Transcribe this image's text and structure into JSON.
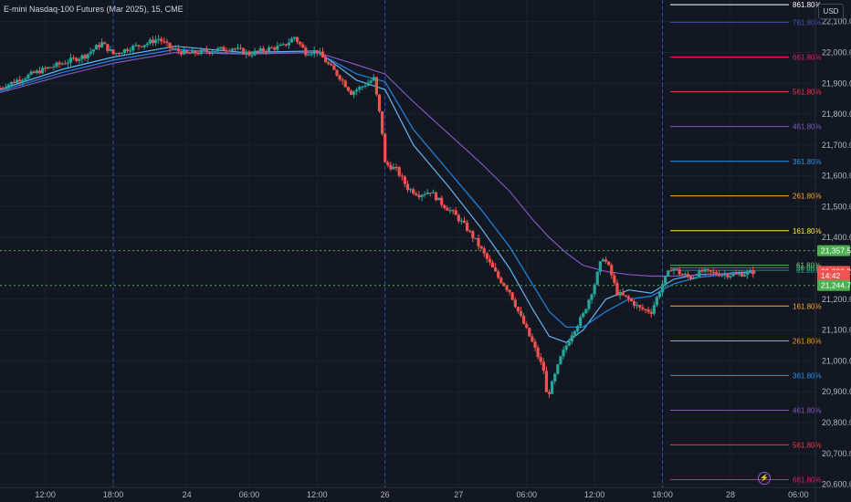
{
  "header": {
    "title": "E-mini Nasdaq-100 Futures (Mar 2025), 15, CME"
  },
  "currency_button": "USD",
  "flash_icon": "lightning-icon",
  "colors": {
    "background": "#131722",
    "grid": "#1e222d",
    "up": "#26a69a",
    "down": "#ef5350",
    "session_divider": "#2962ff",
    "ema_fast": "#64b5f6",
    "ema_mid": "#1e88e5",
    "ema_slow": "#7e57c2",
    "level_line": "#4caf50"
  },
  "chart_data": {
    "type": "candlestick",
    "title": "E-mini Nasdaq-100 Futures (Mar 2025), 15, CME",
    "y_ticks": [
      "22,100.00",
      "22,000.00",
      "21,900.00",
      "21,800.00",
      "21,700.00",
      "21,600.00",
      "21,500.00",
      "21,400.00",
      "21,200.00",
      "21,100.00",
      "21,000.00",
      "20,900.00",
      "20,800.00",
      "20,700.00",
      "20,600.00"
    ],
    "y_tick_values": [
      22100,
      22000,
      21900,
      21800,
      21700,
      21600,
      21500,
      21400,
      21200,
      21100,
      21000,
      20900,
      20800,
      20700,
      20600
    ],
    "ylim": [
      20590,
      22170
    ],
    "x_ticks": [
      "12:00",
      "18:00",
      "24",
      "06:00",
      "12:00",
      "26",
      "27",
      "06:00",
      "12:00",
      "18:00",
      "28",
      "06:00"
    ],
    "x_tick_values": [
      0.5,
      6.5,
      13,
      18.5,
      24.5,
      30.5,
      37,
      43,
      49,
      55,
      61,
      67
    ],
    "xlim": [
      -3.5,
      68.5
    ],
    "session_dividers": [
      6.5,
      30.5,
      55
    ],
    "ohlc_anchor_points": [
      [
        -3.5,
        21885
      ],
      [
        -2,
        21910
      ],
      [
        0,
        21940
      ],
      [
        2,
        21965
      ],
      [
        4,
        21990
      ],
      [
        5.5,
        22030
      ],
      [
        6.5,
        21995
      ],
      [
        8,
        22015
      ],
      [
        9.5,
        22030
      ],
      [
        10.5,
        22045
      ],
      [
        11.5,
        22015
      ],
      [
        13,
        21995
      ],
      [
        15,
        22005
      ],
      [
        17,
        22015
      ],
      [
        18.5,
        21995
      ],
      [
        20,
        22010
      ],
      [
        21.5,
        22020
      ],
      [
        22.5,
        22050
      ],
      [
        23.5,
        22000
      ],
      [
        24.5,
        22005
      ],
      [
        25.5,
        21960
      ],
      [
        26.5,
        21920
      ],
      [
        27.5,
        21870
      ],
      [
        28.5,
        21890
      ],
      [
        29.5,
        21915
      ],
      [
        30.2,
        21760
      ],
      [
        30.5,
        21640
      ],
      [
        31.5,
        21620
      ],
      [
        32.5,
        21560
      ],
      [
        33.5,
        21540
      ],
      [
        34.5,
        21550
      ],
      [
        35.5,
        21510
      ],
      [
        36.5,
        21480
      ],
      [
        37.5,
        21440
      ],
      [
        38.5,
        21390
      ],
      [
        39.5,
        21330
      ],
      [
        40.5,
        21270
      ],
      [
        41.5,
        21225
      ],
      [
        42.5,
        21140
      ],
      [
        43.5,
        21060
      ],
      [
        44.5,
        20970
      ],
      [
        44.8,
        20880
      ],
      [
        45.3,
        20930
      ],
      [
        46,
        21010
      ],
      [
        47,
        21090
      ],
      [
        48,
        21150
      ],
      [
        49,
        21250
      ],
      [
        49.7,
        21340
      ],
      [
        50.3,
        21300
      ],
      [
        51,
        21220
      ],
      [
        52,
        21200
      ],
      [
        53,
        21170
      ],
      [
        54,
        21160
      ],
      [
        55,
        21250
      ],
      [
        55.8,
        21305
      ],
      [
        56.5,
        21285
      ],
      [
        57.5,
        21270
      ],
      [
        58.5,
        21290
      ],
      [
        59.5,
        21285
      ],
      [
        60.5,
        21280
      ],
      [
        61.5,
        21280
      ],
      [
        62.5,
        21285
      ],
      [
        63.2,
        21290
      ]
    ],
    "ema_fast": [
      [
        -3.5,
        21880
      ],
      [
        2,
        21945
      ],
      [
        6.5,
        21985
      ],
      [
        12,
        22020
      ],
      [
        18,
        22000
      ],
      [
        24.5,
        22005
      ],
      [
        28,
        21910
      ],
      [
        30.5,
        21880
      ],
      [
        33,
        21700
      ],
      [
        36,
        21570
      ],
      [
        39,
        21430
      ],
      [
        41.5,
        21300
      ],
      [
        43.5,
        21170
      ],
      [
        45,
        21080
      ],
      [
        46.5,
        21060
      ],
      [
        48,
        21100
      ],
      [
        50,
        21200
      ],
      [
        52,
        21230
      ],
      [
        54,
        21220
      ],
      [
        56,
        21265
      ],
      [
        58,
        21280
      ],
      [
        60,
        21282
      ],
      [
        63.2,
        21290
      ]
    ],
    "ema_mid": [
      [
        -3.5,
        21875
      ],
      [
        2,
        21935
      ],
      [
        6.5,
        21975
      ],
      [
        12,
        22010
      ],
      [
        18,
        21995
      ],
      [
        24.5,
        22000
      ],
      [
        28,
        21930
      ],
      [
        30.5,
        21905
      ],
      [
        33,
        21750
      ],
      [
        36,
        21620
      ],
      [
        39,
        21490
      ],
      [
        41.5,
        21370
      ],
      [
        43.5,
        21250
      ],
      [
        45,
        21160
      ],
      [
        46.5,
        21110
      ],
      [
        48,
        21110
      ],
      [
        50,
        21160
      ],
      [
        52,
        21200
      ],
      [
        54,
        21210
      ],
      [
        56,
        21250
      ],
      [
        58,
        21270
      ],
      [
        60,
        21278
      ],
      [
        63.2,
        21288
      ]
    ],
    "ema_slow": [
      [
        -3.5,
        21870
      ],
      [
        2,
        21925
      ],
      [
        6.5,
        21965
      ],
      [
        12,
        22000
      ],
      [
        18,
        21995
      ],
      [
        24.5,
        22000
      ],
      [
        28,
        21960
      ],
      [
        30.5,
        21930
      ],
      [
        33,
        21840
      ],
      [
        36,
        21740
      ],
      [
        39,
        21640
      ],
      [
        41.5,
        21550
      ],
      [
        43.5,
        21460
      ],
      [
        45,
        21400
      ],
      [
        46.5,
        21350
      ],
      [
        48,
        21310
      ],
      [
        50,
        21290
      ],
      [
        52,
        21280
      ],
      [
        54,
        21275
      ],
      [
        56,
        21275
      ],
      [
        58,
        21278
      ],
      [
        60,
        21282
      ],
      [
        63.2,
        21286
      ]
    ],
    "price_markers": [
      {
        "label": "21,357.50",
        "value": 21357.5,
        "color": "#4caf50"
      },
      {
        "label": "21,290.25",
        "value": 21290.25,
        "color": "#ef5350"
      },
      {
        "label": "14:42",
        "value": 21276,
        "color": "#ef5350"
      },
      {
        "label": "21,244.75",
        "value": 21244.75,
        "color": "#4caf50"
      }
    ],
    "level_lines": [
      21357.5,
      21244.75
    ],
    "fib_upper": [
      {
        "label": "861.80%",
        "value": 22155,
        "color": "#ffffff"
      },
      {
        "label": "761.80%",
        "value": 22098,
        "color": "#3f51b5"
      },
      {
        "label": "661.80%",
        "value": 21985,
        "color": "#e91e63"
      },
      {
        "label": "561.80%",
        "value": 21873,
        "color": "#f23645"
      },
      {
        "label": "461.80%",
        "value": 21760,
        "color": "#7e57c2"
      },
      {
        "label": "361.80%",
        "value": 21647,
        "color": "#2196f3"
      },
      {
        "label": "261.80%",
        "value": 21535,
        "color": "#ffa726"
      },
      {
        "label": "161.80%",
        "value": 21422,
        "color": "#ffeb3b"
      }
    ],
    "fib_lower": [
      {
        "label": "161.80%",
        "value": 21178,
        "color": "#ffa726"
      },
      {
        "label": "261.80%",
        "value": 21065,
        "color": "#ff9800"
      },
      {
        "label": "361.80%",
        "value": 20953,
        "color": "#2196f3"
      },
      {
        "label": "461.80%",
        "value": 20840,
        "color": "#7e57c2"
      },
      {
        "label": "561.80%",
        "value": 20728,
        "color": "#f23645"
      },
      {
        "label": "661.80%",
        "value": 20615,
        "color": "#e91e63"
      }
    ],
    "fib_near": [
      {
        "label": "61.80%",
        "value": 21310,
        "color": "#81c784"
      },
      {
        "label": "50.00%",
        "value": 21302,
        "color": "#4caf50"
      },
      {
        "label": "61.80%",
        "value": 21294,
        "color": "#26a69a"
      }
    ]
  }
}
